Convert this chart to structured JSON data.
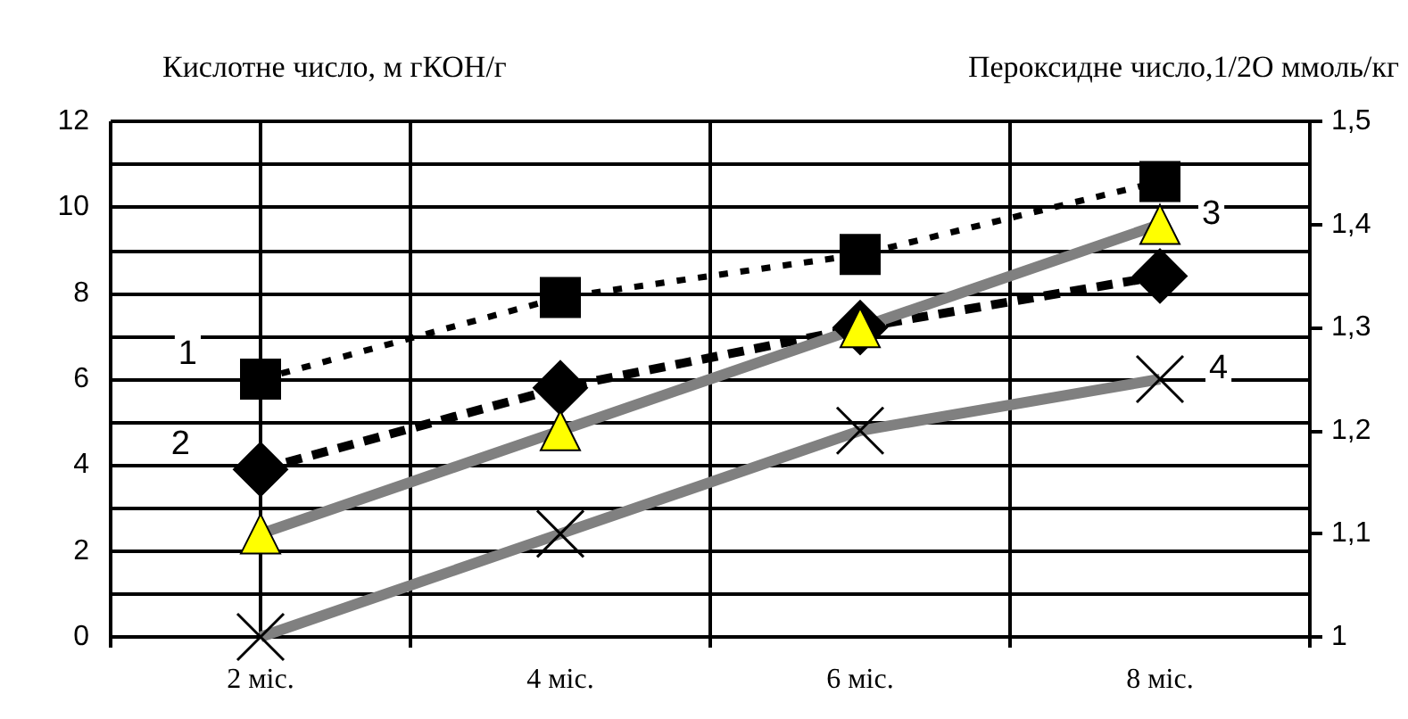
{
  "chart_data": {
    "type": "line",
    "ylabel": "Кислотне число, м гКОН/г",
    "y2label": "Пероксидне число,1/2О ммоль/кг",
    "categories": [
      "2 міс.",
      "4 міс.",
      "6 міс.",
      "8 міс."
    ],
    "ylim": [
      0,
      12
    ],
    "yticks": [
      0,
      {
        "value": 1,
        "label": null
      },
      2,
      {
        "value": 3,
        "label": null
      },
      4,
      {
        "value": 5,
        "label": null
      },
      6,
      {
        "value": 7,
        "label": null
      },
      8,
      {
        "value": 9,
        "label": null
      },
      10,
      {
        "value": 11,
        "label": null
      },
      12
    ],
    "y2lim": [
      1,
      1.5
    ],
    "y2ticks": [
      1,
      {
        "value": 1.1,
        "label": "1,1"
      },
      {
        "value": 1.2,
        "label": "1,2"
      },
      {
        "value": 1.3,
        "label": "1,3"
      },
      {
        "value": 1.4,
        "label": "1,4"
      },
      {
        "value": 1.5,
        "label": "1,5"
      }
    ],
    "grid": true,
    "legend": false,
    "series": [
      {
        "name": "1",
        "color": "#000000",
        "marker": "square",
        "line_style": "dotted",
        "values": [
          6,
          7.9,
          8.9,
          10.6
        ]
      },
      {
        "name": "2",
        "color": "#000000",
        "marker": "diamond",
        "line_style": "dashed",
        "values": [
          3.9,
          5.8,
          7.2,
          8.4
        ]
      },
      {
        "name": "3",
        "color": "#808080",
        "colors": [
          "#ffff00",
          "#ffff00",
          "#ffff00",
          "#ffff00"
        ],
        "marker": "triangle",
        "line_style": "solid",
        "axis": "y2",
        "values": [
          1.1,
          1.2,
          1.3,
          1.4
        ]
      },
      {
        "name": "4",
        "color": "#808080",
        "marker": "cross",
        "line_style": "solid",
        "axis": "y2",
        "values": [
          1.0,
          1.1,
          1.2,
          1.25
        ]
      }
    ]
  }
}
